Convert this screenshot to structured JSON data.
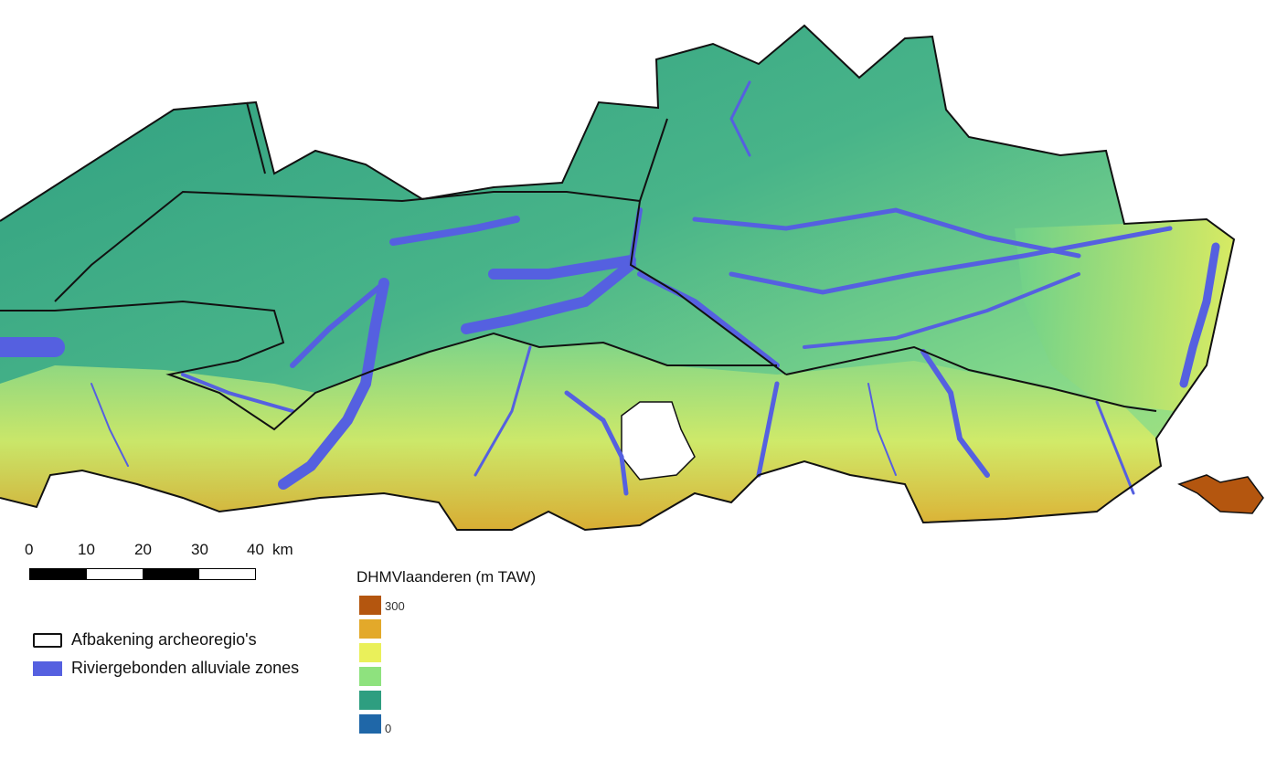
{
  "map": {
    "colors": {
      "low_coastal": "#2e9e80",
      "mid_green": "#6fd28a",
      "high_green": "#b5e87a",
      "yellow": "#eaf05a",
      "orange": "#e3a92a",
      "brown": "#b4560f",
      "river": "#5560e0",
      "region_border": "#111111",
      "background": "#ffffff"
    }
  },
  "scalebar": {
    "labels": [
      "0",
      "10",
      "20",
      "30",
      "40"
    ],
    "unit": "km"
  },
  "legend": {
    "items": [
      {
        "label": "Afbakening archeoregio's",
        "symbol": "outline-box"
      },
      {
        "label": "Riviergebonden alluviale zones",
        "symbol": "filled-blue"
      }
    ]
  },
  "dem_legend": {
    "title": "DHMVlaanderen (m TAW)",
    "max_label": "300",
    "min_label": "0",
    "colors": [
      "#b4560f",
      "#e3a92a",
      "#eaf05a",
      "#8ee27e",
      "#2e9e80",
      "#1f67a8"
    ]
  }
}
